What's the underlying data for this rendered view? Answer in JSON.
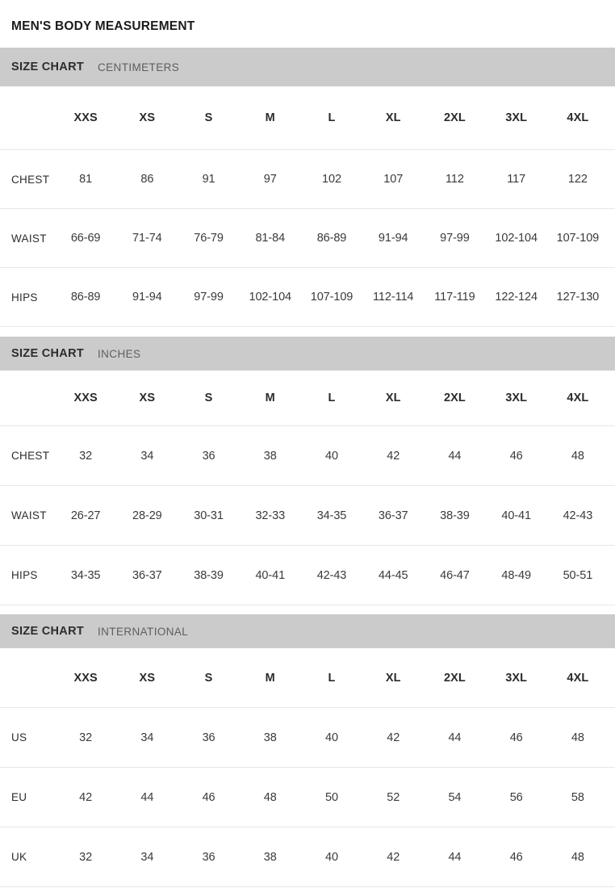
{
  "page_title": "MEN'S BODY MEASUREMENT",
  "colors": {
    "banner_bg": "#cbcbcb",
    "row_divider": "#e7e7e7",
    "title_text": "#1b1b1b",
    "subtitle_text": "#5e5e5e",
    "value_text": "#3a3a3a"
  },
  "sections": [
    {
      "id": "centimeters",
      "title": "SIZE CHART",
      "subtitle": "CENTIMETERS",
      "columns": [
        "XXS",
        "XS",
        "S",
        "M",
        "L",
        "XL",
        "2XL",
        "3XL",
        "4XL"
      ],
      "rows": [
        {
          "label": "CHEST",
          "values": [
            "81",
            "86",
            "91",
            "97",
            "102",
            "107",
            "112",
            "117",
            "122"
          ]
        },
        {
          "label": "WAIST",
          "values": [
            "66-69",
            "71-74",
            "76-79",
            "81-84",
            "86-89",
            "91-94",
            "97-99",
            "102-104",
            "107-109"
          ]
        },
        {
          "label": "HIPS",
          "values": [
            "86-89",
            "91-94",
            "97-99",
            "102-104",
            "107-109",
            "112-114",
            "117-119",
            "122-124",
            "127-130"
          ]
        }
      ]
    },
    {
      "id": "inches",
      "title": "SIZE CHART",
      "subtitle": "INCHES",
      "columns": [
        "XXS",
        "XS",
        "S",
        "M",
        "L",
        "XL",
        "2XL",
        "3XL",
        "4XL"
      ],
      "rows": [
        {
          "label": "CHEST",
          "values": [
            "32",
            "34",
            "36",
            "38",
            "40",
            "42",
            "44",
            "46",
            "48"
          ]
        },
        {
          "label": "WAIST",
          "values": [
            "26-27",
            "28-29",
            "30-31",
            "32-33",
            "34-35",
            "36-37",
            "38-39",
            "40-41",
            "42-43"
          ]
        },
        {
          "label": "HIPS",
          "values": [
            "34-35",
            "36-37",
            "38-39",
            "40-41",
            "42-43",
            "44-45",
            "46-47",
            "48-49",
            "50-51"
          ]
        }
      ]
    },
    {
      "id": "international",
      "title": "SIZE CHART",
      "subtitle": "INTERNATIONAL",
      "columns": [
        "XXS",
        "XS",
        "S",
        "M",
        "L",
        "XL",
        "2XL",
        "3XL",
        "4XL"
      ],
      "rows": [
        {
          "label": "US",
          "values": [
            "32",
            "34",
            "36",
            "38",
            "40",
            "42",
            "44",
            "46",
            "48"
          ]
        },
        {
          "label": "EU",
          "values": [
            "42",
            "44",
            "46",
            "48",
            "50",
            "52",
            "54",
            "56",
            "58"
          ]
        },
        {
          "label": "UK",
          "values": [
            "32",
            "34",
            "36",
            "38",
            "40",
            "42",
            "44",
            "46",
            "48"
          ]
        }
      ]
    }
  ]
}
